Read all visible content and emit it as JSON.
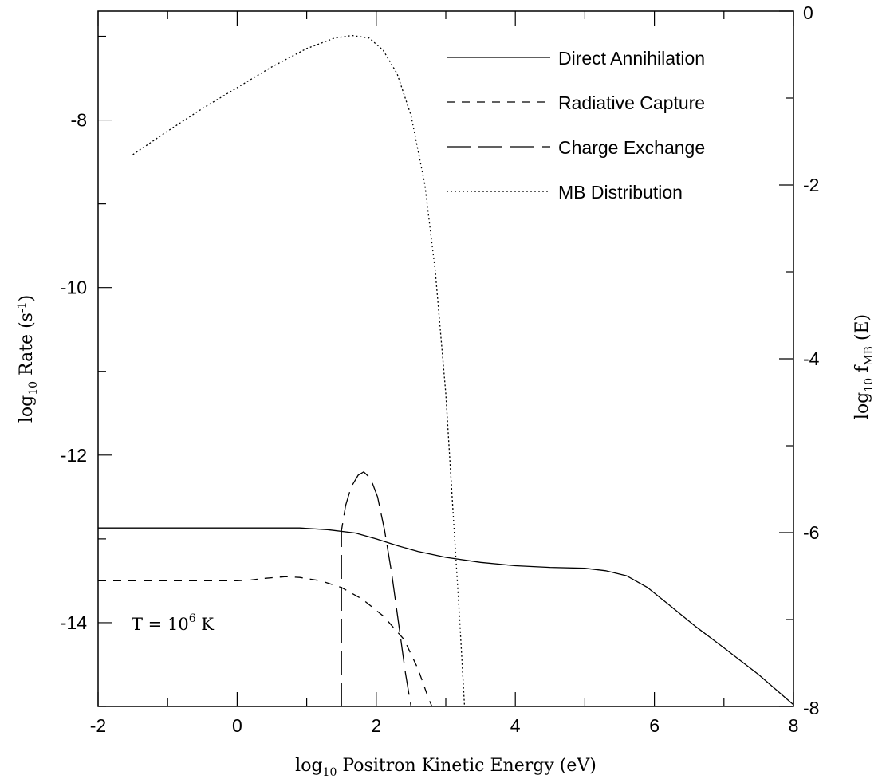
{
  "chart_data": {
    "type": "line",
    "xlabel": {
      "pre": "log",
      "sub": "10",
      "post": " Positron Kinetic Energy (eV)"
    },
    "ylabel_left": {
      "pre": "log",
      "sub": "10",
      "mid": " Rate (s",
      "sup": "-1",
      "post": ")"
    },
    "ylabel_right": {
      "pre": "log",
      "sub": "10",
      "mid": " f",
      "sub2": "MB",
      "post": " (E)"
    },
    "xlim": [
      -2,
      8
    ],
    "ylim_left": [
      -15,
      -6.7
    ],
    "ylim_right": [
      -8,
      0
    ],
    "x_ticks": [
      "-2",
      "0",
      "2",
      "4",
      "6",
      "8"
    ],
    "y_left_ticks": [
      "-8",
      "-10",
      "-12",
      "-14"
    ],
    "y_right_ticks": [
      "0",
      "-2",
      "-4",
      "-6",
      "-8"
    ],
    "annotation": {
      "pre": "T = 10",
      "sup": "6",
      "post": " K"
    },
    "series": [
      {
        "name": "Direct Annihilation",
        "axis": "left",
        "style": "solid",
        "points": [
          [
            -2,
            -12.87
          ],
          [
            0,
            -12.87
          ],
          [
            0.9,
            -12.87
          ],
          [
            1.3,
            -12.89
          ],
          [
            1.7,
            -12.93
          ],
          [
            2.0,
            -13.0
          ],
          [
            2.3,
            -13.08
          ],
          [
            2.6,
            -13.15
          ],
          [
            3.0,
            -13.22
          ],
          [
            3.5,
            -13.28
          ],
          [
            4.0,
            -13.32
          ],
          [
            4.5,
            -13.34
          ],
          [
            5.0,
            -13.35
          ],
          [
            5.3,
            -13.38
          ],
          [
            5.6,
            -13.44
          ],
          [
            5.9,
            -13.58
          ],
          [
            6.2,
            -13.78
          ],
          [
            6.6,
            -14.05
          ],
          [
            7.0,
            -14.3
          ],
          [
            7.5,
            -14.62
          ],
          [
            8.0,
            -14.98
          ]
        ]
      },
      {
        "name": "Radiative Capture",
        "axis": "left",
        "style": "dashed",
        "points": [
          [
            -2,
            -13.5
          ],
          [
            0,
            -13.5
          ],
          [
            0.2,
            -13.49
          ],
          [
            0.4,
            -13.47
          ],
          [
            0.7,
            -13.45
          ],
          [
            0.9,
            -13.46
          ],
          [
            1.2,
            -13.5
          ],
          [
            1.5,
            -13.58
          ],
          [
            1.8,
            -13.72
          ],
          [
            2.1,
            -13.92
          ],
          [
            2.4,
            -14.2
          ],
          [
            2.6,
            -14.55
          ],
          [
            2.75,
            -14.9
          ],
          [
            2.8,
            -15.0
          ]
        ]
      },
      {
        "name": "Charge Exchange",
        "axis": "left",
        "style": "longdash",
        "points": [
          [
            1.5,
            -15.0
          ],
          [
            1.5,
            -12.9
          ],
          [
            1.56,
            -12.6
          ],
          [
            1.64,
            -12.38
          ],
          [
            1.74,
            -12.24
          ],
          [
            1.82,
            -12.2
          ],
          [
            1.92,
            -12.28
          ],
          [
            2.02,
            -12.5
          ],
          [
            2.12,
            -12.9
          ],
          [
            2.22,
            -13.4
          ],
          [
            2.32,
            -14.0
          ],
          [
            2.42,
            -14.6
          ],
          [
            2.5,
            -15.0
          ]
        ]
      },
      {
        "name": "MB Distribution",
        "axis": "right",
        "style": "dotted",
        "points": [
          [
            -1.5,
            -1.65
          ],
          [
            -1.0,
            -1.38
          ],
          [
            -0.5,
            -1.12
          ],
          [
            0.0,
            -0.88
          ],
          [
            0.5,
            -0.64
          ],
          [
            1.0,
            -0.43
          ],
          [
            1.4,
            -0.31
          ],
          [
            1.65,
            -0.28
          ],
          [
            1.9,
            -0.31
          ],
          [
            2.1,
            -0.45
          ],
          [
            2.3,
            -0.72
          ],
          [
            2.5,
            -1.2
          ],
          [
            2.7,
            -2.0
          ],
          [
            2.85,
            -3.0
          ],
          [
            3.0,
            -4.4
          ],
          [
            3.1,
            -5.7
          ],
          [
            3.2,
            -7.0
          ],
          [
            3.27,
            -8.0
          ]
        ]
      }
    ],
    "legend": {
      "placement": "top-right"
    }
  }
}
